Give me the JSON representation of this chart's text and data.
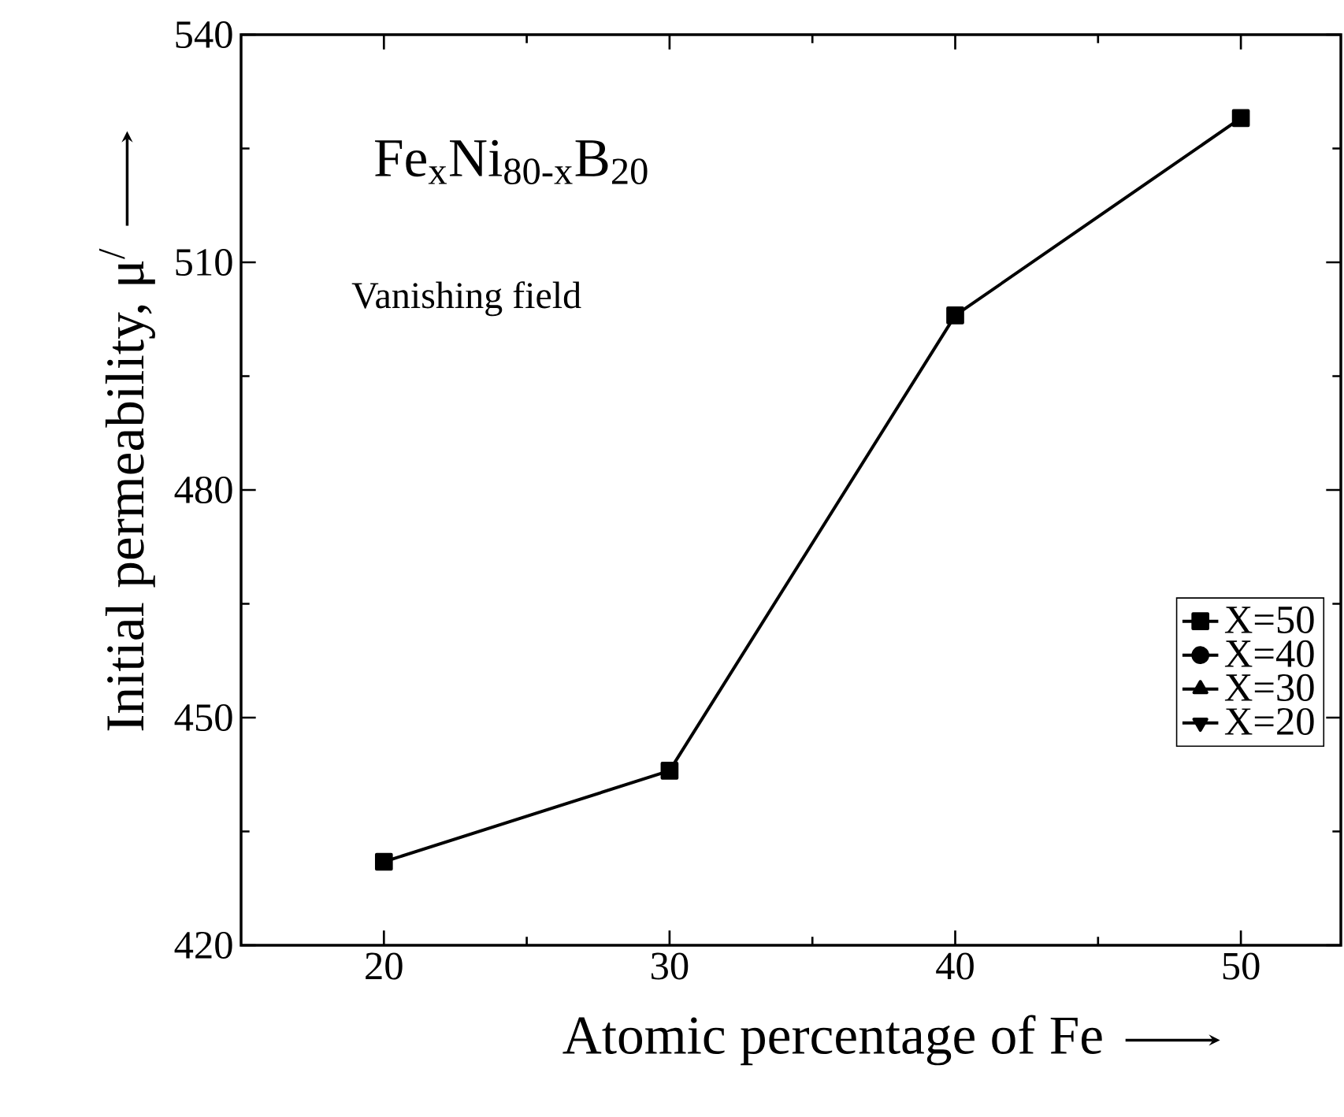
{
  "chart_data": {
    "type": "line",
    "xlabel": "Atomic percentage of Fe",
    "ylabel": "Initial permeability, μ$^{/}$",
    "x": [
      20,
      30,
      40,
      50
    ],
    "series": [
      {
        "name": "X=50",
        "color": "#000000",
        "marker": "square",
        "values": [
          431,
          443,
          503,
          529
        ]
      },
      {
        "name": "X=40",
        "color": "#000000",
        "marker": "circle",
        "values": [
          null,
          null,
          null,
          null
        ]
      },
      {
        "name": "X=30",
        "color": "#000000",
        "marker": "triangle",
        "values": [
          null,
          null,
          null,
          null
        ]
      },
      {
        "name": "X=20",
        "color": "#000000",
        "marker": "triangle-down",
        "values": [
          null,
          null,
          null,
          null
        ]
      }
    ],
    "xlim": [
      15,
      53.5
    ],
    "xticks": [
      20,
      30,
      40,
      50
    ],
    "ylim": [
      420,
      540
    ],
    "yticks": [
      420,
      450,
      480,
      510,
      540
    ],
    "annotations": [
      "Fe$_{x}$Ni$_{80-x}$B$_{20}$",
      "Vanishing field"
    ],
    "legend": "right",
    "line_style": "solid",
    "grid": false
  }
}
